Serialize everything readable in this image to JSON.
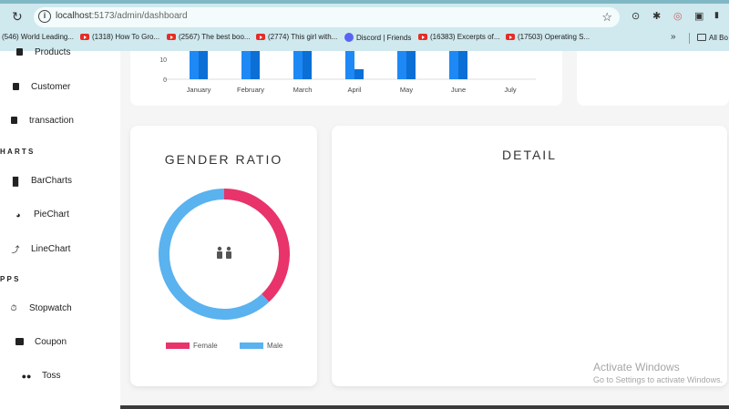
{
  "browser": {
    "url_host": "localhost",
    "url_path": ":5173/admin/dashboard",
    "bookmarks": [
      {
        "label": "(546) World Leading...",
        "icon": "none"
      },
      {
        "label": "(1318) How To Gro...",
        "icon": "youtube-icon"
      },
      {
        "label": "(2567) The best boo...",
        "icon": "youtube-icon"
      },
      {
        "label": "(2774) This girl with...",
        "icon": "youtube-icon"
      },
      {
        "label": "Discord | Friends",
        "icon": "discord-icon"
      },
      {
        "label": "(16383) Excerpts of...",
        "icon": "youtube-icon"
      },
      {
        "label": "(17503) Operating S...",
        "icon": "youtube-icon"
      }
    ],
    "bookmarks_more": "»",
    "all_bookmarks": "All Bo"
  },
  "sidebar": {
    "items_top": [
      {
        "label": "Products"
      },
      {
        "label": "Customer"
      },
      {
        "label": "transaction"
      }
    ],
    "charts_title": "HARTS",
    "charts_items": [
      {
        "label": "BarCharts"
      },
      {
        "label": "PieChart"
      },
      {
        "label": "LineChart"
      }
    ],
    "apps_title": "PPS",
    "apps_items": [
      {
        "label": "Stopwatch"
      },
      {
        "label": "Coupon"
      },
      {
        "label": "Toss"
      }
    ]
  },
  "chart_data": [
    {
      "type": "bar",
      "categories": [
        "January",
        "February",
        "March",
        "April",
        "May",
        "June",
        "July"
      ],
      "series": [
        {
          "values": [
            30,
            30,
            30,
            30,
            30,
            30,
            0
          ]
        },
        {
          "values": [
            30,
            30,
            30,
            5,
            30,
            30,
            0
          ]
        }
      ],
      "y_ticks": [
        "0",
        "10"
      ],
      "colors": [
        "#1e88f5",
        "#0b6fd6"
      ]
    },
    {
      "type": "pie",
      "title": "GENDER RATIO",
      "categories": [
        "Female",
        "Male"
      ],
      "values": [
        38,
        62
      ],
      "colors": [
        "#e8336b",
        "#5ab2ef"
      ],
      "center_icon": "people-icon"
    }
  ],
  "detail": {
    "title": "DETAIL"
  },
  "watermark": {
    "line1": "Activate Windows",
    "line2": "Go to Settings to activate Windows."
  }
}
